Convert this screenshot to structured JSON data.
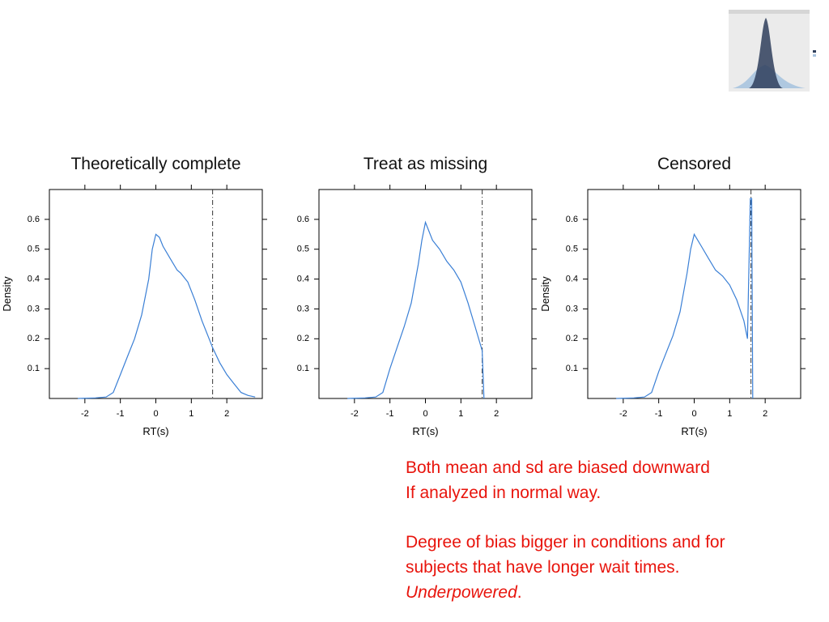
{
  "chart_data": [
    {
      "type": "line",
      "title": "Theoretically complete",
      "xlabel": "RT(s)",
      "ylabel": "Density",
      "x": [
        -2.2,
        -1.7,
        -1.4,
        -1.2,
        -1,
        -0.8,
        -0.6,
        -0.4,
        -0.2,
        -0.1,
        0,
        0.1,
        0.2,
        0.4,
        0.6,
        0.7,
        0.9,
        1.1,
        1.3,
        1.5,
        1.6,
        1.8,
        2,
        2.2,
        2.4,
        2.6,
        2.8
      ],
      "y": [
        0,
        0.002,
        0.005,
        0.02,
        0.08,
        0.14,
        0.2,
        0.28,
        0.4,
        0.5,
        0.55,
        0.54,
        0.51,
        0.47,
        0.43,
        0.42,
        0.39,
        0.33,
        0.26,
        0.2,
        0.17,
        0.12,
        0.08,
        0.05,
        0.02,
        0.01,
        0.005
      ],
      "color": "#3a7fd5",
      "vline": 1.6,
      "xlim": [
        -3,
        3
      ],
      "ylim": [
        0,
        0.7
      ],
      "xticks": [
        -2,
        -1,
        0,
        1,
        2
      ],
      "yticks": [
        0.1,
        0.2,
        0.3,
        0.4,
        0.5,
        0.6
      ]
    },
    {
      "type": "line",
      "title": "Treat as missing",
      "xlabel": "RT(s)",
      "x": [
        -2.2,
        -1.7,
        -1.4,
        -1.2,
        -1,
        -0.8,
        -0.6,
        -0.4,
        -0.2,
        -0.1,
        0,
        0.2,
        0.4,
        0.6,
        0.8,
        1,
        1.2,
        1.4,
        1.6,
        1.65
      ],
      "y": [
        0,
        0.002,
        0.005,
        0.02,
        0.1,
        0.17,
        0.24,
        0.32,
        0.45,
        0.53,
        0.59,
        0.53,
        0.5,
        0.46,
        0.43,
        0.39,
        0.32,
        0.24,
        0.16,
        0
      ],
      "color": "#3a7fd5",
      "vline": 1.6,
      "xlim": [
        -3,
        3
      ],
      "ylim": [
        0,
        0.7
      ],
      "xticks": [
        -2,
        -1,
        0,
        1,
        2
      ],
      "yticks": [
        0.1,
        0.2,
        0.3,
        0.4,
        0.5,
        0.6
      ]
    },
    {
      "type": "line",
      "title": "Censored",
      "xlabel": "RT(s)",
      "ylabel": "Density",
      "x": [
        -2.2,
        -1.7,
        -1.4,
        -1.2,
        -1,
        -0.8,
        -0.6,
        -0.4,
        -0.2,
        -0.1,
        0,
        0.2,
        0.4,
        0.6,
        0.8,
        1,
        1.2,
        1.4,
        1.5,
        1.58,
        1.62,
        1.65
      ],
      "y": [
        0,
        0.002,
        0.005,
        0.02,
        0.09,
        0.15,
        0.21,
        0.29,
        0.42,
        0.5,
        0.55,
        0.51,
        0.47,
        0.43,
        0.41,
        0.38,
        0.33,
        0.26,
        0.2,
        0.67,
        0.67,
        0
      ],
      "color": "#3a7fd5",
      "vline": 1.6,
      "xlim": [
        -3,
        3
      ],
      "ylim": [
        0,
        0.7
      ],
      "xticks": [
        -2,
        -1,
        0,
        1,
        2
      ],
      "yticks": [
        0.1,
        0.2,
        0.3,
        0.4,
        0.5,
        0.6
      ]
    }
  ],
  "notes": {
    "lines": [
      "Both mean and sd are biased downward",
      "If analyzed in normal way.",
      "Degree of bias bigger in conditions and for",
      "subjects that have longer wait times."
    ],
    "emphasis": "Underpowered",
    "end": "."
  }
}
